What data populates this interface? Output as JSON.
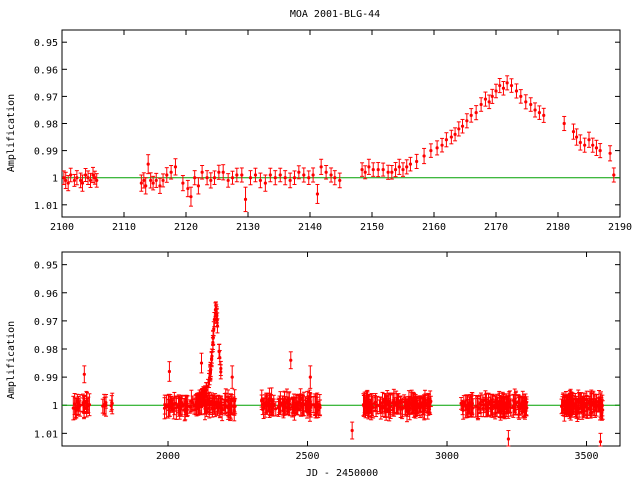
{
  "title": "MOA 2001-BLG-44",
  "colors": {
    "points": "#ff0000",
    "errorbars": "#ff0000",
    "baseline": "#00a000",
    "frame": "#000000"
  },
  "chart_data": [
    {
      "type": "scatter",
      "title": "MOA 2001-BLG-44",
      "xlabel": "",
      "ylabel": "Amplification",
      "xlim": [
        2100,
        2190
      ],
      "ylim": [
        0.9455,
        1.0145
      ],
      "y_inverted": true,
      "xticks": [
        2100,
        2110,
        2120,
        2130,
        2140,
        2150,
        2160,
        2170,
        2180,
        2190
      ],
      "yticks": [
        0.95,
        0.96,
        0.97,
        0.98,
        0.99,
        1,
        1.01
      ],
      "ytick_labels": [
        "0.95",
        "0.96",
        "0.97",
        "0.98",
        "0.99",
        "1",
        "1.01"
      ],
      "baseline": 1,
      "points": [
        [
          2100.3,
          1.0,
          0.0025
        ],
        [
          2100.6,
          1.001,
          0.003
        ],
        [
          2101.0,
          1.002,
          0.0028
        ],
        [
          2101.4,
          0.999,
          0.0025
        ],
        [
          2102.0,
          1.001,
          0.0022
        ],
        [
          2102.4,
          1.0,
          0.0026
        ],
        [
          2103.0,
          1.001,
          0.0027
        ],
        [
          2103.3,
          1.002,
          0.003
        ],
        [
          2103.8,
          0.999,
          0.0024
        ],
        [
          2104.2,
          1.0,
          0.0025
        ],
        [
          2104.6,
          1.001,
          0.0026
        ],
        [
          2105.0,
          0.999,
          0.0028
        ],
        [
          2105.3,
          1.0,
          0.0024
        ],
        [
          2105.6,
          1.001,
          0.0025
        ],
        [
          2112.8,
          1.002,
          0.003
        ],
        [
          2113.2,
          1.001,
          0.0028
        ],
        [
          2113.5,
          1.003,
          0.003
        ],
        [
          2113.9,
          0.995,
          0.0035
        ],
        [
          2114.3,
          1.001,
          0.0028
        ],
        [
          2114.7,
          1.002,
          0.0025
        ],
        [
          2115.2,
          1.001,
          0.0026
        ],
        [
          2115.8,
          1.003,
          0.0028
        ],
        [
          2116.3,
          1.001,
          0.0024
        ],
        [
          2116.9,
          0.999,
          0.0027
        ],
        [
          2117.6,
          0.998,
          0.0025
        ],
        [
          2118.3,
          0.996,
          0.003
        ],
        [
          2119.5,
          1.002,
          0.0028
        ],
        [
          2120.3,
          1.004,
          0.003
        ],
        [
          2120.8,
          1.007,
          0.0035
        ],
        [
          2121.4,
          1.0,
          0.0026
        ],
        [
          2122.0,
          1.003,
          0.003
        ],
        [
          2122.6,
          0.998,
          0.0025
        ],
        [
          2123.4,
          1.0,
          0.0026
        ],
        [
          2124.0,
          1.001,
          0.0028
        ],
        [
          2124.6,
          1.0,
          0.0025
        ],
        [
          2125.3,
          0.998,
          0.0026
        ],
        [
          2126.0,
          0.998,
          0.0028
        ],
        [
          2126.8,
          1.001,
          0.0025
        ],
        [
          2127.5,
          1.0,
          0.0024
        ],
        [
          2128.2,
          0.999,
          0.0025
        ],
        [
          2129.0,
          0.999,
          0.0026
        ],
        [
          2129.6,
          1.008,
          0.0045
        ],
        [
          2130.4,
          1.0,
          0.0026
        ],
        [
          2131.2,
          0.999,
          0.0025
        ],
        [
          2132.0,
          1.001,
          0.0027
        ],
        [
          2132.8,
          1.002,
          0.003
        ],
        [
          2133.6,
          0.999,
          0.0025
        ],
        [
          2134.4,
          1.0,
          0.0026
        ],
        [
          2135.2,
          0.999,
          0.0025
        ],
        [
          2136.0,
          1.0,
          0.0026
        ],
        [
          2136.8,
          1.001,
          0.0027
        ],
        [
          2137.5,
          1.0,
          0.0025
        ],
        [
          2138.2,
          0.998,
          0.0024
        ],
        [
          2139.0,
          0.999,
          0.0026
        ],
        [
          2139.8,
          1.0,
          0.0025
        ],
        [
          2140.5,
          0.999,
          0.0026
        ],
        [
          2141.2,
          1.006,
          0.0035
        ],
        [
          2141.8,
          0.996,
          0.0028
        ],
        [
          2142.6,
          0.998,
          0.0025
        ],
        [
          2143.4,
          0.999,
          0.0026
        ],
        [
          2144.0,
          1.0,
          0.0026
        ],
        [
          2144.8,
          1.001,
          0.0027
        ],
        [
          2148.4,
          0.997,
          0.0025
        ],
        [
          2148.9,
          0.998,
          0.0024
        ],
        [
          2149.5,
          0.996,
          0.0028
        ],
        [
          2150.2,
          0.997,
          0.0025
        ],
        [
          2151.0,
          0.997,
          0.0026
        ],
        [
          2151.8,
          0.997,
          0.0024
        ],
        [
          2152.6,
          0.998,
          0.0026
        ],
        [
          2153.2,
          0.998,
          0.0025
        ],
        [
          2153.8,
          0.997,
          0.0026
        ],
        [
          2154.4,
          0.996,
          0.0028
        ],
        [
          2155.0,
          0.997,
          0.0025
        ],
        [
          2155.6,
          0.996,
          0.0026
        ],
        [
          2156.2,
          0.995,
          0.0025
        ],
        [
          2157.2,
          0.994,
          0.0026
        ],
        [
          2158.4,
          0.992,
          0.0028
        ],
        [
          2159.5,
          0.99,
          0.0025
        ],
        [
          2160.5,
          0.989,
          0.0026
        ],
        [
          2161.3,
          0.988,
          0.0025
        ],
        [
          2162.0,
          0.986,
          0.0026
        ],
        [
          2162.8,
          0.985,
          0.0025
        ],
        [
          2163.4,
          0.984,
          0.0024
        ],
        [
          2164.0,
          0.982,
          0.0026
        ],
        [
          2164.6,
          0.981,
          0.0025
        ],
        [
          2165.3,
          0.979,
          0.0026
        ],
        [
          2166.0,
          0.977,
          0.0025
        ],
        [
          2166.8,
          0.976,
          0.0026
        ],
        [
          2167.6,
          0.973,
          0.0025
        ],
        [
          2168.3,
          0.971,
          0.0026
        ],
        [
          2168.9,
          0.972,
          0.0025
        ],
        [
          2169.4,
          0.97,
          0.0026
        ],
        [
          2170.0,
          0.968,
          0.0025
        ],
        [
          2170.6,
          0.966,
          0.0026
        ],
        [
          2171.2,
          0.967,
          0.0025
        ],
        [
          2171.8,
          0.965,
          0.0026
        ],
        [
          2172.5,
          0.966,
          0.0025
        ],
        [
          2173.3,
          0.968,
          0.0026
        ],
        [
          2174.0,
          0.97,
          0.0025
        ],
        [
          2174.8,
          0.972,
          0.0026
        ],
        [
          2175.6,
          0.973,
          0.0025
        ],
        [
          2176.3,
          0.975,
          0.0026
        ],
        [
          2177.0,
          0.976,
          0.0025
        ],
        [
          2177.7,
          0.977,
          0.0026
        ],
        [
          2181.0,
          0.98,
          0.0026
        ],
        [
          2182.5,
          0.983,
          0.0028
        ],
        [
          2183.0,
          0.985,
          0.003
        ],
        [
          2183.6,
          0.987,
          0.0028
        ],
        [
          2184.3,
          0.988,
          0.0026
        ],
        [
          2185.0,
          0.986,
          0.0028
        ],
        [
          2185.6,
          0.988,
          0.0026
        ],
        [
          2186.2,
          0.989,
          0.0028
        ],
        [
          2186.8,
          0.99,
          0.0026
        ],
        [
          2188.4,
          0.991,
          0.0028
        ],
        [
          2189.0,
          0.999,
          0.0026
        ]
      ]
    },
    {
      "type": "scatter",
      "title": "",
      "xlabel": "JD - 2450000",
      "ylabel": "Amplification",
      "xlim": [
        1620,
        3620
      ],
      "ylim": [
        0.9455,
        1.0145
      ],
      "y_inverted": true,
      "xticks": [
        2000,
        2500,
        3000,
        3500
      ],
      "yticks": [
        0.95,
        0.96,
        0.97,
        0.98,
        0.99,
        1,
        1.01
      ],
      "ytick_labels": [
        "0.95",
        "0.96",
        "0.97",
        "0.98",
        "0.99",
        "1",
        "1.01"
      ],
      "baseline": 1,
      "seasons": [
        {
          "start": 1660,
          "end": 1720,
          "n": 25,
          "err": 0.003,
          "scatter": 0.003
        },
        {
          "start": 1760,
          "end": 1810,
          "n": 8,
          "err": 0.0028,
          "scatter": 0.002
        },
        {
          "start": 1985,
          "end": 2245,
          "n": 120,
          "err": 0.003,
          "scatter": 0.003
        },
        {
          "start": 2335,
          "end": 2545,
          "n": 110,
          "err": 0.003,
          "scatter": 0.003
        },
        {
          "start": 2700,
          "end": 2945,
          "n": 130,
          "err": 0.003,
          "scatter": 0.003
        },
        {
          "start": 3050,
          "end": 3290,
          "n": 130,
          "err": 0.003,
          "scatter": 0.003
        },
        {
          "start": 3410,
          "end": 3560,
          "n": 100,
          "err": 0.003,
          "scatter": 0.003
        }
      ],
      "event": {
        "peak_jd": 2171,
        "peak_amp": 0.966,
        "halfwidth": 14,
        "start": 2100,
        "end": 2190
      },
      "outliers": [
        [
          1700,
          0.989,
          0.003
        ],
        [
          2005,
          0.988,
          0.0035
        ],
        [
          2120,
          0.985,
          0.0035
        ],
        [
          2230,
          0.99,
          0.004
        ],
        [
          2440,
          0.984,
          0.003
        ],
        [
          2510,
          0.99,
          0.004
        ],
        [
          2660,
          1.009,
          0.003
        ],
        [
          3220,
          1.012,
          0.003
        ],
        [
          3550,
          1.013,
          0.003
        ]
      ]
    }
  ]
}
